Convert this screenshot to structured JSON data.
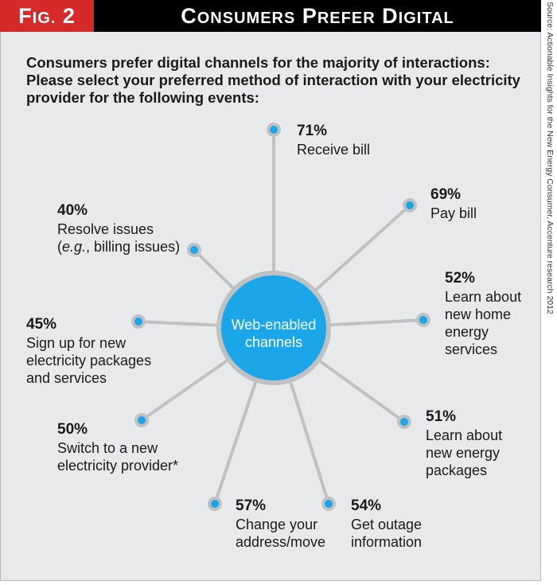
{
  "header": {
    "fig_label_big": "F",
    "fig_label_small": "IG.",
    "fig_label_num": "2",
    "title_parts": [
      {
        "big": "C",
        "small": "ONSUMERS"
      },
      {
        "big": "P",
        "small": "REFER"
      },
      {
        "big": "D",
        "small": "IGITAL"
      }
    ]
  },
  "question": {
    "line1": "Consumers prefer digital channels for the majority of interactions:",
    "line2": "Please select your preferred method of interaction with your electricity",
    "line3": "provider for the following events:"
  },
  "center": {
    "line1": "Web-enabled",
    "line2": "channels"
  },
  "items": [
    {
      "pct": "71%",
      "lines": [
        "Receive bill"
      ]
    },
    {
      "pct": "69%",
      "lines": [
        "Pay bill"
      ]
    },
    {
      "pct": "52%",
      "lines": [
        "Learn about",
        "new home",
        "energy",
        "services"
      ]
    },
    {
      "pct": "51%",
      "lines": [
        "Learn about",
        "new energy",
        "packages"
      ]
    },
    {
      "pct": "54%",
      "lines": [
        "Get outage",
        "information"
      ]
    },
    {
      "pct": "57%",
      "lines": [
        "Change your",
        "address/move"
      ]
    },
    {
      "pct": "50%",
      "lines": [
        "Switch to a new",
        "electricity provider*"
      ]
    },
    {
      "pct": "45%",
      "lines": [
        "Sign up for new",
        "electricity packages",
        "and services"
      ]
    },
    {
      "pct": "40%",
      "lines": [
        "Resolve issues",
        "(e.g., billing issues)"
      ]
    }
  ],
  "source": "Source: Actionable Insights for the New Energy Consumer, Accenture research 2012",
  "colors": {
    "fig_red": "#d62a2a",
    "title_black": "#000000",
    "hub_blue": "#1aa6e8",
    "spoke_gray": "#bfc1c3",
    "dot_blue": "#1aa6e8",
    "background": "#e8e9ea"
  }
}
